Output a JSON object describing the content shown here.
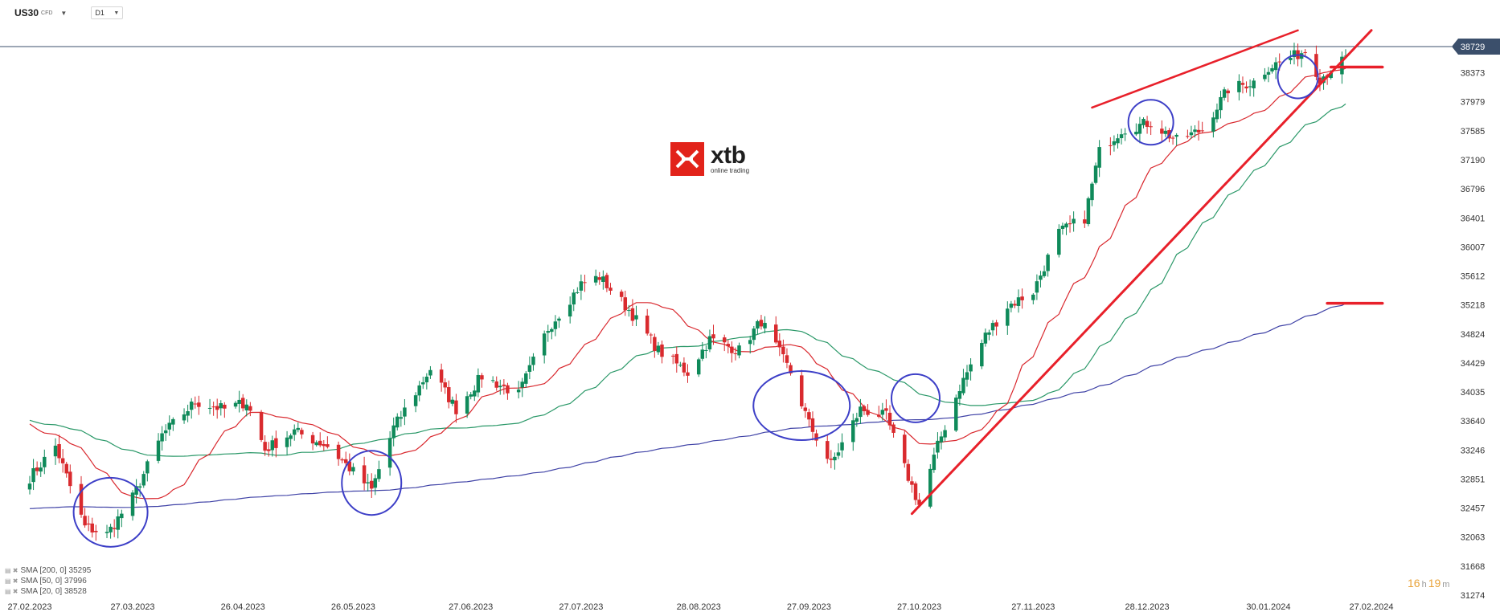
{
  "header": {
    "symbol": "US30",
    "symbol_sub": "CFD",
    "timeframe": "D1"
  },
  "watermark": {
    "brand": "xtb",
    "tagline": "online trading"
  },
  "legend": [
    {
      "label": "SMA [200, 0] 35295"
    },
    {
      "label": "SMA [50, 0] 37996"
    },
    {
      "label": "SMA [20, 0] 38528"
    }
  ],
  "timer": {
    "hours": "16",
    "h_unit": "h",
    "minutes": "19",
    "m_unit": "m"
  },
  "colors": {
    "bull": "#0f8a5a",
    "bear": "#d92a2e",
    "sma200": "#3f42a6",
    "sma50": "#2a9868",
    "sma20": "#d9282e",
    "trend": "#e8202a",
    "circle": "#3d3fc7",
    "price_line": "#3b4f6b"
  },
  "chart_data": {
    "type": "candlestick",
    "title": "",
    "current_price": "38729",
    "ylim": [
      31274,
      38729
    ],
    "y_ticks": [
      38729,
      38373,
      37979,
      37585,
      37190,
      36796,
      36401,
      36007,
      35612,
      35218,
      34824,
      34429,
      34035,
      33640,
      33246,
      32851,
      32457,
      32063,
      31668,
      31274
    ],
    "x_ticks": [
      "27.02.2023",
      "27.03.2023",
      "26.04.2023",
      "26.05.2023",
      "27.06.2023",
      "27.07.2023",
      "28.08.2023",
      "27.09.2023",
      "27.10.2023",
      "27.11.2023",
      "28.12.2023",
      "30.01.2024",
      "27.02.2024"
    ],
    "key_closes": [
      [
        "27.02.2023",
        32870
      ],
      [
        "06.03.2023",
        33300
      ],
      [
        "14.03.2023",
        32200
      ],
      [
        "20.03.2023",
        32100
      ],
      [
        "27.03.2023",
        32600
      ],
      [
        "04.04.2023",
        33450
      ],
      [
        "13.04.2023",
        33900
      ],
      [
        "21.04.2023",
        33800
      ],
      [
        "27.04.2023",
        33900
      ],
      [
        "02.05.2023",
        33250
      ],
      [
        "10.05.2023",
        33500
      ],
      [
        "19.05.2023",
        33300
      ],
      [
        "26.05.2023",
        32950
      ],
      [
        "31.05.2023",
        32700
      ],
      [
        "06.06.2023",
        33550
      ],
      [
        "16.06.2023",
        34350
      ],
      [
        "23.06.2023",
        33800
      ],
      [
        "30.06.2023",
        34250
      ],
      [
        "10.07.2023",
        34000
      ],
      [
        "18.07.2023",
        34900
      ],
      [
        "27.07.2023",
        35500
      ],
      [
        "01.08.2023",
        35600
      ],
      [
        "09.08.2023",
        35150
      ],
      [
        "17.08.2023",
        34600
      ],
      [
        "25.08.2023",
        34300
      ],
      [
        "31.08.2023",
        34750
      ],
      [
        "08.09.2023",
        34600
      ],
      [
        "14.09.2023",
        35000
      ],
      [
        "22.09.2023",
        34300
      ],
      [
        "27.09.2023",
        33600
      ],
      [
        "03.10.2023",
        33050
      ],
      [
        "11.10.2023",
        33800
      ],
      [
        "18.10.2023",
        33700
      ],
      [
        "23.10.2023",
        33000
      ],
      [
        "27.10.2023",
        32500
      ],
      [
        "01.11.2023",
        33300
      ],
      [
        "07.11.2023",
        34100
      ],
      [
        "14.11.2023",
        34800
      ],
      [
        "20.11.2023",
        35200
      ],
      [
        "27.11.2023",
        35400
      ],
      [
        "04.12.2023",
        36200
      ],
      [
        "11.12.2023",
        36400
      ],
      [
        "15.12.2023",
        37300
      ],
      [
        "21.12.2023",
        37600
      ],
      [
        "29.12.2023",
        37700
      ],
      [
        "05.01.2024",
        37450
      ],
      [
        "12.01.2024",
        37600
      ],
      [
        "19.01.2024",
        38150
      ],
      [
        "26.01.2024",
        38250
      ],
      [
        "30.01.2024",
        38450
      ],
      [
        "06.02.2024",
        38600
      ],
      [
        "09.02.2024",
        38680
      ],
      [
        "13.02.2024",
        38300
      ],
      [
        "20.02.2024",
        38560
      ]
    ],
    "series": [
      {
        "name": "SMA [200, 0] 35295",
        "type": "line"
      },
      {
        "name": "SMA [50, 0] 37996",
        "type": "line"
      },
      {
        "name": "SMA [20, 0] 38528",
        "type": "line"
      }
    ],
    "grid": false
  }
}
